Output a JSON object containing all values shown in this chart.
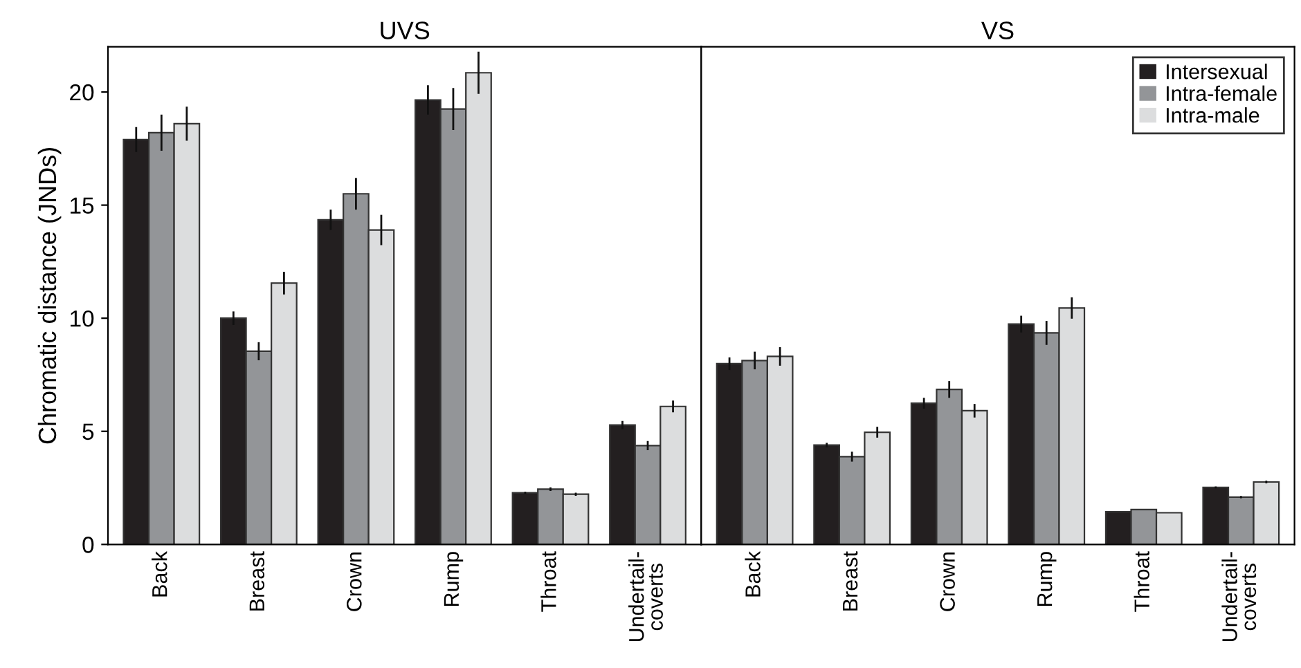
{
  "chart_data": [
    {
      "type": "bar",
      "title": "UVS",
      "ylabel": "Chromatic distance (JNDs)",
      "categories": [
        "Back",
        "Breast",
        "Crown",
        "Rump",
        "Throat",
        "Undertail-\ncoverts"
      ],
      "ylim": [
        0,
        22
      ],
      "yticks": [
        0,
        5,
        10,
        15,
        20
      ],
      "grid": false,
      "legend": false,
      "series": [
        {
          "color": "#231f20",
          "values": [
            17.9,
            10.0,
            14.35,
            19.65,
            2.28,
            5.28
          ],
          "errors": [
            0.55,
            0.3,
            0.45,
            0.65,
            0.05,
            0.18
          ]
        },
        {
          "color": "#939598",
          "values": [
            18.2,
            8.54,
            15.5,
            19.25,
            2.44,
            4.37
          ],
          "errors": [
            0.8,
            0.4,
            0.7,
            0.93,
            0.08,
            0.2
          ]
        },
        {
          "color": "#dcddde",
          "values": [
            18.6,
            11.55,
            13.9,
            20.85,
            2.22,
            6.1
          ],
          "errors": [
            0.75,
            0.5,
            0.67,
            0.93,
            0.07,
            0.26
          ]
        }
      ]
    },
    {
      "type": "bar",
      "title": "VS",
      "categories": [
        "Back",
        "Breast",
        "Crown",
        "Rump",
        "Throat",
        "Undertail-\ncoverts"
      ],
      "ylim": [
        0,
        22
      ],
      "yticks": [
        0,
        5,
        10,
        15,
        20
      ],
      "grid": false,
      "legend": "top right",
      "tick_labels": "x",
      "series": [
        {
          "name": "Intersexual",
          "color": "#231f20",
          "values": [
            7.99,
            4.39,
            6.24,
            9.74,
            1.44,
            2.52
          ],
          "errors": [
            0.28,
            0.1,
            0.24,
            0.37,
            null,
            0.04
          ]
        },
        {
          "name": "Intra-female",
          "color": "#939598",
          "values": [
            8.13,
            3.88,
            6.85,
            9.35,
            1.54,
            2.09
          ],
          "errors": [
            0.39,
            0.22,
            0.37,
            0.53,
            null,
            0.05
          ]
        },
        {
          "name": "Intra-male",
          "color": "#dcddde",
          "values": [
            8.31,
            4.96,
            5.91,
            10.45,
            1.4,
            2.76
          ],
          "errors": [
            0.41,
            0.24,
            0.3,
            0.47,
            null,
            0.06
          ]
        }
      ]
    }
  ]
}
